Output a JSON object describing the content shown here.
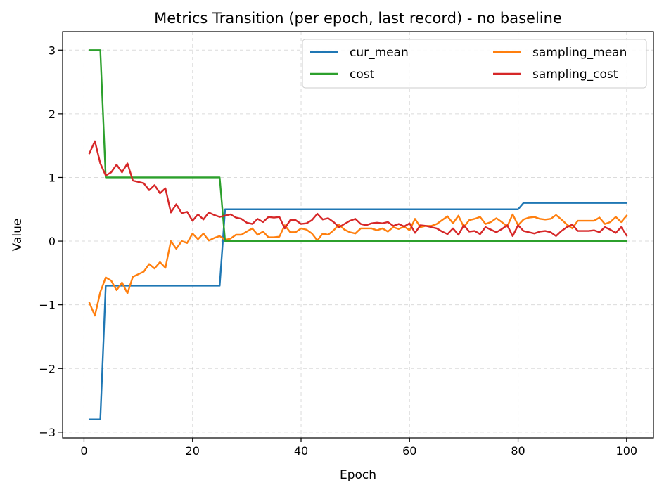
{
  "chart_data": {
    "type": "line",
    "title": "Metrics Transition (per epoch, last record) - no baseline",
    "xlabel": "Epoch",
    "ylabel": "Value",
    "xlim": [
      -3.95,
      104.95
    ],
    "ylim": [
      -3.09,
      3.29
    ],
    "xticks": [
      0,
      20,
      40,
      60,
      80,
      100
    ],
    "yticks": [
      -3,
      -2,
      -1,
      0,
      1,
      2,
      3
    ],
    "grid": true,
    "legend": {
      "placement": "top-right",
      "columns": 2
    },
    "x": [
      1,
      2,
      3,
      4,
      5,
      6,
      7,
      8,
      9,
      10,
      11,
      12,
      13,
      14,
      15,
      16,
      17,
      18,
      19,
      20,
      21,
      22,
      23,
      24,
      25,
      26,
      27,
      28,
      29,
      30,
      31,
      32,
      33,
      34,
      35,
      36,
      37,
      38,
      39,
      40,
      41,
      42,
      43,
      44,
      45,
      46,
      47,
      48,
      49,
      50,
      51,
      52,
      53,
      54,
      55,
      56,
      57,
      58,
      59,
      60,
      61,
      62,
      63,
      64,
      65,
      66,
      67,
      68,
      69,
      70,
      71,
      72,
      73,
      74,
      75,
      76,
      77,
      78,
      79,
      80,
      81,
      82,
      83,
      84,
      85,
      86,
      87,
      88,
      89,
      90,
      91,
      92,
      93,
      94,
      95,
      96,
      97,
      98,
      99,
      100
    ],
    "series": [
      {
        "name": "cur_mean",
        "color": "#1f77b4",
        "values": [
          -2.8,
          -2.8,
          -2.8,
          -0.7,
          -0.7,
          -0.7,
          -0.7,
          -0.7,
          -0.7,
          -0.7,
          -0.7,
          -0.7,
          -0.7,
          -0.7,
          -0.7,
          -0.7,
          -0.7,
          -0.7,
          -0.7,
          -0.7,
          -0.7,
          -0.7,
          -0.7,
          -0.7,
          -0.7,
          0.5,
          0.5,
          0.5,
          0.5,
          0.5,
          0.5,
          0.5,
          0.5,
          0.5,
          0.5,
          0.5,
          0.5,
          0.5,
          0.5,
          0.5,
          0.5,
          0.5,
          0.5,
          0.5,
          0.5,
          0.5,
          0.5,
          0.5,
          0.5,
          0.5,
          0.5,
          0.5,
          0.5,
          0.5,
          0.5,
          0.5,
          0.5,
          0.5,
          0.5,
          0.5,
          0.5,
          0.5,
          0.5,
          0.5,
          0.5,
          0.5,
          0.5,
          0.5,
          0.5,
          0.5,
          0.5,
          0.5,
          0.5,
          0.5,
          0.5,
          0.5,
          0.5,
          0.5,
          0.5,
          0.5,
          0.6,
          0.6,
          0.6,
          0.6,
          0.6,
          0.6,
          0.6,
          0.6,
          0.6,
          0.6,
          0.6,
          0.6,
          0.6,
          0.6,
          0.6,
          0.6,
          0.6,
          0.6,
          0.6,
          0.6
        ]
      },
      {
        "name": "sampling_mean",
        "color": "#ff7f0e",
        "values": [
          -0.97,
          -1.17,
          -0.8,
          -0.57,
          -0.62,
          -0.77,
          -0.65,
          -0.82,
          -0.56,
          -0.52,
          -0.48,
          -0.36,
          -0.43,
          -0.33,
          -0.42,
          0.0,
          -0.12,
          0.0,
          -0.03,
          0.12,
          0.03,
          0.12,
          0.01,
          0.05,
          0.08,
          0.02,
          0.04,
          0.1,
          0.1,
          0.15,
          0.2,
          0.1,
          0.15,
          0.06,
          0.06,
          0.07,
          0.25,
          0.14,
          0.14,
          0.2,
          0.18,
          0.12,
          0.01,
          0.12,
          0.1,
          0.17,
          0.26,
          0.18,
          0.14,
          0.12,
          0.2,
          0.2,
          0.2,
          0.17,
          0.2,
          0.15,
          0.22,
          0.19,
          0.23,
          0.17,
          0.35,
          0.22,
          0.24,
          0.24,
          0.27,
          0.33,
          0.39,
          0.28,
          0.4,
          0.22,
          0.33,
          0.35,
          0.38,
          0.27,
          0.3,
          0.36,
          0.3,
          0.23,
          0.42,
          0.25,
          0.34,
          0.37,
          0.38,
          0.35,
          0.34,
          0.35,
          0.41,
          0.34,
          0.26,
          0.2,
          0.32,
          0.32,
          0.32,
          0.32,
          0.37,
          0.27,
          0.3,
          0.38,
          0.3,
          0.4
        ]
      },
      {
        "name": "cost",
        "color": "#2ca02c",
        "values": [
          3,
          3,
          3,
          1,
          1,
          1,
          1,
          1,
          1,
          1,
          1,
          1,
          1,
          1,
          1,
          1,
          1,
          1,
          1,
          1,
          1,
          1,
          1,
          1,
          1,
          0,
          0,
          0,
          0,
          0,
          0,
          0,
          0,
          0,
          0,
          0,
          0,
          0,
          0,
          0,
          0,
          0,
          0,
          0,
          0,
          0,
          0,
          0,
          0,
          0,
          0,
          0,
          0,
          0,
          0,
          0,
          0,
          0,
          0,
          0,
          0,
          0,
          0,
          0,
          0,
          0,
          0,
          0,
          0,
          0,
          0,
          0,
          0,
          0,
          0,
          0,
          0,
          0,
          0,
          0,
          0,
          0,
          0,
          0,
          0,
          0,
          0,
          0,
          0,
          0,
          0,
          0,
          0,
          0,
          0,
          0,
          0,
          0,
          0,
          0
        ]
      },
      {
        "name": "sampling_cost",
        "color": "#d62728",
        "values": [
          1.38,
          1.57,
          1.22,
          1.03,
          1.08,
          1.2,
          1.08,
          1.22,
          0.95,
          0.93,
          0.91,
          0.8,
          0.88,
          0.75,
          0.83,
          0.45,
          0.58,
          0.44,
          0.46,
          0.32,
          0.42,
          0.34,
          0.45,
          0.41,
          0.38,
          0.4,
          0.42,
          0.37,
          0.35,
          0.29,
          0.27,
          0.35,
          0.3,
          0.38,
          0.37,
          0.38,
          0.2,
          0.33,
          0.33,
          0.27,
          0.28,
          0.33,
          0.43,
          0.34,
          0.36,
          0.3,
          0.22,
          0.27,
          0.32,
          0.35,
          0.27,
          0.25,
          0.28,
          0.29,
          0.28,
          0.3,
          0.24,
          0.27,
          0.23,
          0.28,
          0.13,
          0.25,
          0.24,
          0.22,
          0.2,
          0.15,
          0.11,
          0.2,
          0.1,
          0.25,
          0.15,
          0.16,
          0.11,
          0.22,
          0.18,
          0.14,
          0.19,
          0.25,
          0.08,
          0.25,
          0.16,
          0.14,
          0.12,
          0.15,
          0.16,
          0.14,
          0.08,
          0.16,
          0.22,
          0.26,
          0.16,
          0.16,
          0.16,
          0.17,
          0.14,
          0.22,
          0.18,
          0.13,
          0.22,
          0.09
        ]
      }
    ]
  }
}
